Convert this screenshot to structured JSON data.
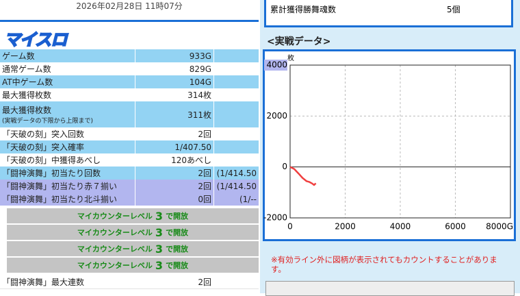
{
  "left": {
    "datetime": "2026年02月28日 11時07分",
    "logo": "マイスロ",
    "rows": [
      {
        "label": "ゲーム数",
        "value": "933G",
        "style": "blue"
      },
      {
        "label": "通常ゲーム数",
        "value": "829G",
        "style": "white"
      },
      {
        "label": "AT中ゲーム数",
        "value": "104G",
        "style": "blue"
      },
      {
        "label": "最大獲得枚数",
        "value": "314枚",
        "style": "white"
      },
      {
        "label": "最大獲得枚数",
        "note": "(実戦データの下限から上限まで)",
        "value": "311枚",
        "style": "blue"
      },
      {
        "label": "「天破の刻」突入回数",
        "value": "2回",
        "style": "white"
      },
      {
        "label": "「天破の刻」突入確率",
        "value": "1/407.50",
        "style": "blue"
      },
      {
        "label": "「天破の刻」中獲得あべし",
        "value": "120あべし",
        "style": "white"
      },
      {
        "label": "「闘神演舞」初当たり回数",
        "value": "2回",
        "extra": "(1/414.50",
        "style": "blue"
      },
      {
        "label": "「闘神演舞」初当たり赤７揃い",
        "value": "2回",
        "extra": "(1/414.50",
        "style": "lavender"
      },
      {
        "label": "「闘神演舞」初当たり北斗揃い",
        "value": "0回",
        "extra": "(1/--",
        "style": "lavender"
      }
    ],
    "locked": [
      {
        "prefix": "マイカウンターレベル",
        "level": 3,
        "suffix": "で開放"
      },
      {
        "prefix": "マイカウンターレベル",
        "level": 3,
        "suffix": "で開放"
      },
      {
        "prefix": "マイカウンターレベル",
        "level": 3,
        "suffix": "で開放"
      },
      {
        "prefix": "マイカウンターレベル",
        "level": 3,
        "suffix": "で開放"
      }
    ],
    "last_row": {
      "label": "「闘神演舞」最大連数",
      "value": "2回"
    }
  },
  "right": {
    "top_row": {
      "label": "累計獲得勝舞魂数",
      "value": "5個"
    },
    "section_title": "<実戦データ>",
    "chart_data": {
      "type": "line",
      "y_label": "枚",
      "xlim": [
        0,
        8000
      ],
      "ylim": [
        -2000,
        4000
      ],
      "xticks": [
        0,
        2000,
        4000,
        6000,
        {
          "value": 8000,
          "label": "8000G"
        }
      ],
      "yticks": [
        -2000,
        0,
        2000,
        4000
      ],
      "grid": true,
      "series": [
        {
          "color": "#f04040",
          "x": [
            0,
            150,
            300,
            450,
            600,
            700,
            800,
            870,
            933
          ],
          "values": [
            0,
            -80,
            -250,
            -430,
            -560,
            -590,
            -650,
            -710,
            -640
          ]
        }
      ]
    },
    "note": "※有効ライン外に図柄が表示されてもカウントすることがあります。"
  }
}
